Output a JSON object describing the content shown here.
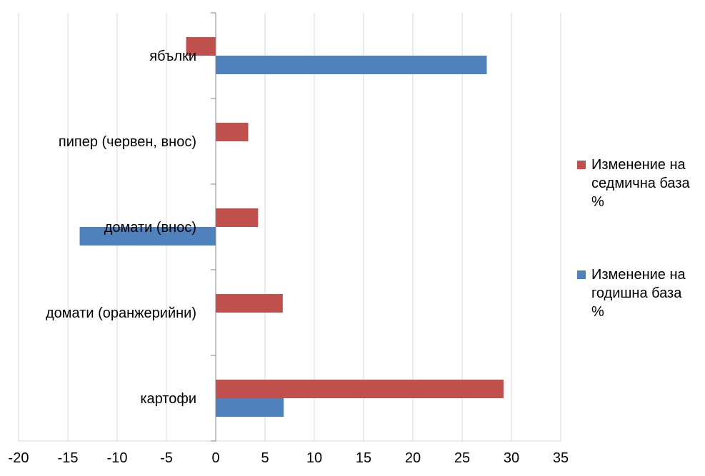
{
  "chart_data": {
    "type": "bar",
    "orientation": "horizontal",
    "categories": [
      "картофи",
      "домати (оранжерийни)",
      "домати (внос)",
      "пипер (червен, внос)",
      "ябълки"
    ],
    "series": [
      {
        "name": "Изменение на седмична база %",
        "color": "#C0504D",
        "values": [
          29.2,
          6.8,
          4.3,
          3.3,
          -3.0
        ]
      },
      {
        "name": "Изменение на годишна база %",
        "color": "#4F81BD",
        "values": [
          6.9,
          null,
          -13.8,
          null,
          27.5
        ]
      }
    ],
    "xlim": [
      -20,
      35
    ],
    "xticks": [
      "-20",
      "-15",
      "-10",
      "-5",
      "0",
      "5",
      "10",
      "15",
      "20",
      "25",
      "30",
      "35"
    ],
    "xlabel": "",
    "ylabel": "",
    "title": "",
    "grid": "vertical",
    "legend_position": "right"
  },
  "legend": {
    "item0_line1": "Изменение на",
    "item0_line2": "седмична база",
    "item0_line3": "%",
    "item1_line1": "Изменение на",
    "item1_line2": "годишна база",
    "item1_line3": "%"
  }
}
